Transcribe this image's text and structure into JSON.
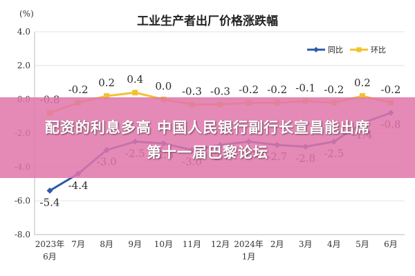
{
  "chart_data": {
    "type": "line",
    "title": "工业生产者出厂价格涨跌幅",
    "unit_label": "(%)",
    "categories": [
      "2023年\n6月",
      "7月",
      "8月",
      "9月",
      "10月",
      "11月",
      "12月",
      "2024年\n1月",
      "2月",
      "3月",
      "4月",
      "5月",
      "6月"
    ],
    "ylim": [
      -8.0,
      4.0
    ],
    "yticks": [
      "4.0",
      "2.0",
      "0.0",
      "-2.0",
      "-4.0",
      "-6.0",
      "-8.0"
    ],
    "ytick_values": [
      4,
      2,
      0,
      -2,
      -4,
      -6,
      -8
    ],
    "grid": true,
    "legend_position": "top-right",
    "series": [
      {
        "name": "同比",
        "color": "#2e5aa8",
        "values": [
          -5.4,
          -4.4,
          -3.0,
          -2.5,
          -2.6,
          -3.0,
          -2.7,
          -2.5,
          -2.7,
          -2.8,
          -2.5,
          -1.4,
          -0.8
        ],
        "labels": [
          "-5.4",
          "-4.4",
          "-3.0",
          "-2.5",
          "-2.6",
          "-3.0",
          "-2.7",
          "-2.5",
          "-2.7",
          "-2.8",
          "-2.5",
          "-1.4",
          "-0.8"
        ],
        "label_pos": "below"
      },
      {
        "name": "环比",
        "color": "#f2c12e",
        "values": [
          -0.8,
          -0.2,
          0.2,
          0.4,
          0.0,
          -0.3,
          -0.3,
          -0.2,
          -0.2,
          -0.1,
          -0.2,
          0.2,
          -0.2
        ],
        "labels": [
          "-0.8",
          "-0.2",
          "0.2",
          "0.4",
          "0.0",
          "-0.3",
          "-0.3",
          "-0.2",
          "-0.2",
          "-0.1",
          "-0.2",
          "0.2",
          "-0.2"
        ],
        "label_pos": "above"
      }
    ]
  },
  "banner": {
    "line1": "配资的利息多高 中国人民银行副行长宣昌能出席",
    "line2": "第十一届巴黎论坛"
  },
  "colors": {
    "banner": "#e076aa",
    "grid": "#e3e3e3",
    "axis_text": "#333333"
  }
}
